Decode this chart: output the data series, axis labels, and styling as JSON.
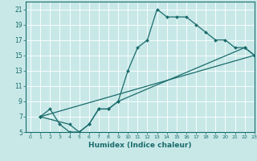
{
  "xlabel": "Humidex (Indice chaleur)",
  "xlim": [
    -0.5,
    23
  ],
  "ylim": [
    5,
    22
  ],
  "xticks": [
    0,
    1,
    2,
    3,
    4,
    5,
    6,
    7,
    8,
    9,
    10,
    11,
    12,
    13,
    14,
    15,
    16,
    17,
    18,
    19,
    20,
    21,
    22,
    23
  ],
  "yticks": [
    5,
    7,
    9,
    11,
    13,
    15,
    17,
    19,
    21
  ],
  "bg_color": "#c8e8e8",
  "line_color": "#1a6b6b",
  "line1_x": [
    1,
    2,
    3,
    4,
    5,
    6,
    7,
    8,
    9,
    10,
    11,
    12,
    13,
    14,
    15,
    16,
    17,
    18,
    19,
    20,
    21,
    22,
    23
  ],
  "line1_y": [
    7,
    8,
    6,
    5,
    5,
    6,
    8,
    8,
    9,
    13,
    16,
    17,
    21,
    20,
    20,
    20,
    19,
    18,
    17,
    17,
    16,
    16,
    15
  ],
  "line2_x": [
    1,
    4,
    5,
    6,
    7,
    8,
    9,
    22,
    23
  ],
  "line2_y": [
    7,
    6,
    5,
    6,
    8,
    8,
    9,
    16,
    15
  ],
  "line3_x": [
    1,
    23
  ],
  "line3_y": [
    7,
    15
  ]
}
